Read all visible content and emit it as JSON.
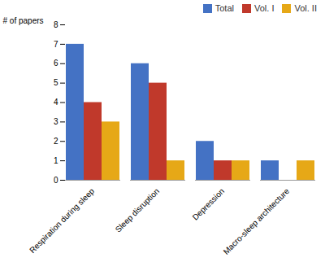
{
  "chart_data": {
    "type": "bar",
    "categories": [
      "Respiration during sleep",
      "Sleep disruption",
      "Depression",
      "Macro-sleep architecture"
    ],
    "series": [
      {
        "name": "Total",
        "color": "#4472C4",
        "values": [
          7,
          6,
          2,
          1
        ]
      },
      {
        "name": "Vol. I",
        "color": "#C0392B",
        "values": [
          4,
          5,
          1,
          0
        ]
      },
      {
        "name": "Vol. II",
        "color": "#E6A817",
        "values": [
          3,
          1,
          1,
          1
        ]
      }
    ],
    "ylabel": "# of papers",
    "ylim": [
      0,
      8
    ],
    "yticks": [
      0,
      1,
      2,
      3,
      4,
      5,
      6,
      7,
      8
    ],
    "legend": "upper right",
    "grid": false
  }
}
